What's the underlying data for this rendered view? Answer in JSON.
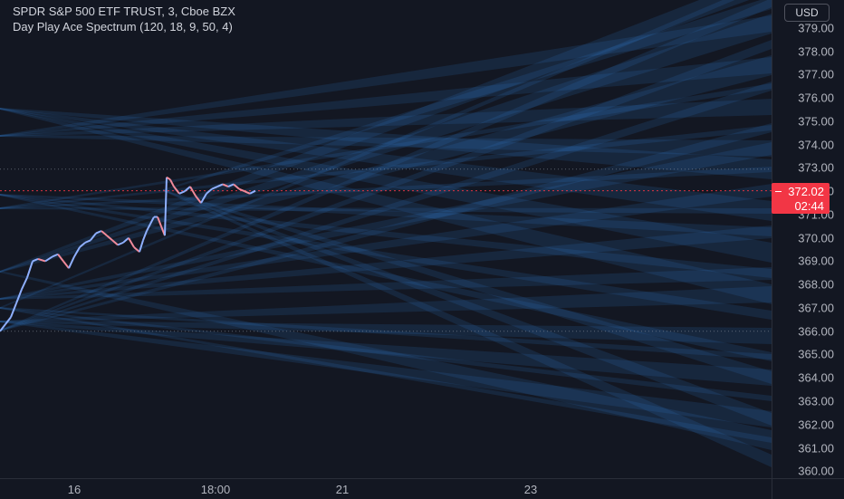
{
  "header": {
    "symbol_line": "SPDR S&P 500 ETF TRUST, 3, Cboe BZX",
    "indicator_line": "Day Play Ace Spectrum (120, 18, 9, 50, 4)"
  },
  "price_axis": {
    "currency": "USD",
    "ticks": [
      "379.00",
      "378.00",
      "377.00",
      "376.00",
      "375.00",
      "374.00",
      "373.00",
      "372.00",
      "371.00",
      "370.00",
      "369.00",
      "368.00",
      "367.00",
      "366.00",
      "365.00",
      "364.00",
      "363.00",
      "362.00",
      "361.00",
      "360.00"
    ],
    "last_price": "372.02",
    "countdown": "02:44"
  },
  "time_axis": {
    "labels": [
      "16",
      "18:00",
      "21",
      "23"
    ]
  },
  "colors": {
    "background": "#131722",
    "band": "#2f7fd0",
    "candle_up": "#8fb0ff",
    "candle_down": "#f08a9a",
    "last_price": "#f23645"
  },
  "chart_data": {
    "type": "candlestick",
    "ylim": [
      359.7,
      380.2
    ],
    "price_lines": [
      372.02,
      366.0,
      372.95
    ],
    "price_path": [
      [
        0,
        366.0
      ],
      [
        6,
        366.3
      ],
      [
        12,
        366.6
      ],
      [
        18,
        367.2
      ],
      [
        24,
        367.8
      ],
      [
        30,
        368.3
      ],
      [
        36,
        369.0
      ],
      [
        42,
        369.1
      ],
      [
        50,
        369.0
      ],
      [
        58,
        369.2
      ],
      [
        64,
        369.3
      ],
      [
        70,
        369.0
      ],
      [
        76,
        368.7
      ],
      [
        82,
        369.2
      ],
      [
        88,
        369.6
      ],
      [
        94,
        369.8
      ],
      [
        100,
        369.9
      ],
      [
        106,
        370.2
      ],
      [
        112,
        370.3
      ],
      [
        118,
        370.1
      ],
      [
        124,
        369.9
      ],
      [
        130,
        369.7
      ],
      [
        136,
        369.8
      ],
      [
        142,
        370.0
      ],
      [
        148,
        369.6
      ],
      [
        154,
        369.4
      ],
      [
        158,
        369.9
      ],
      [
        162,
        370.3
      ],
      [
        166,
        370.6
      ],
      [
        170,
        370.9
      ],
      [
        174,
        370.9
      ],
      [
        178,
        370.5
      ],
      [
        182,
        370.1
      ],
      [
        184,
        372.6
      ],
      [
        188,
        372.5
      ],
      [
        192,
        372.2
      ],
      [
        198,
        371.9
      ],
      [
        204,
        372.0
      ],
      [
        210,
        372.2
      ],
      [
        216,
        371.8
      ],
      [
        222,
        371.5
      ],
      [
        228,
        371.9
      ],
      [
        234,
        372.1
      ],
      [
        240,
        372.2
      ],
      [
        246,
        372.3
      ],
      [
        252,
        372.2
      ],
      [
        258,
        372.3
      ],
      [
        264,
        372.1
      ],
      [
        270,
        372.0
      ],
      [
        276,
        371.9
      ],
      [
        282,
        372.02
      ]
    ]
  }
}
